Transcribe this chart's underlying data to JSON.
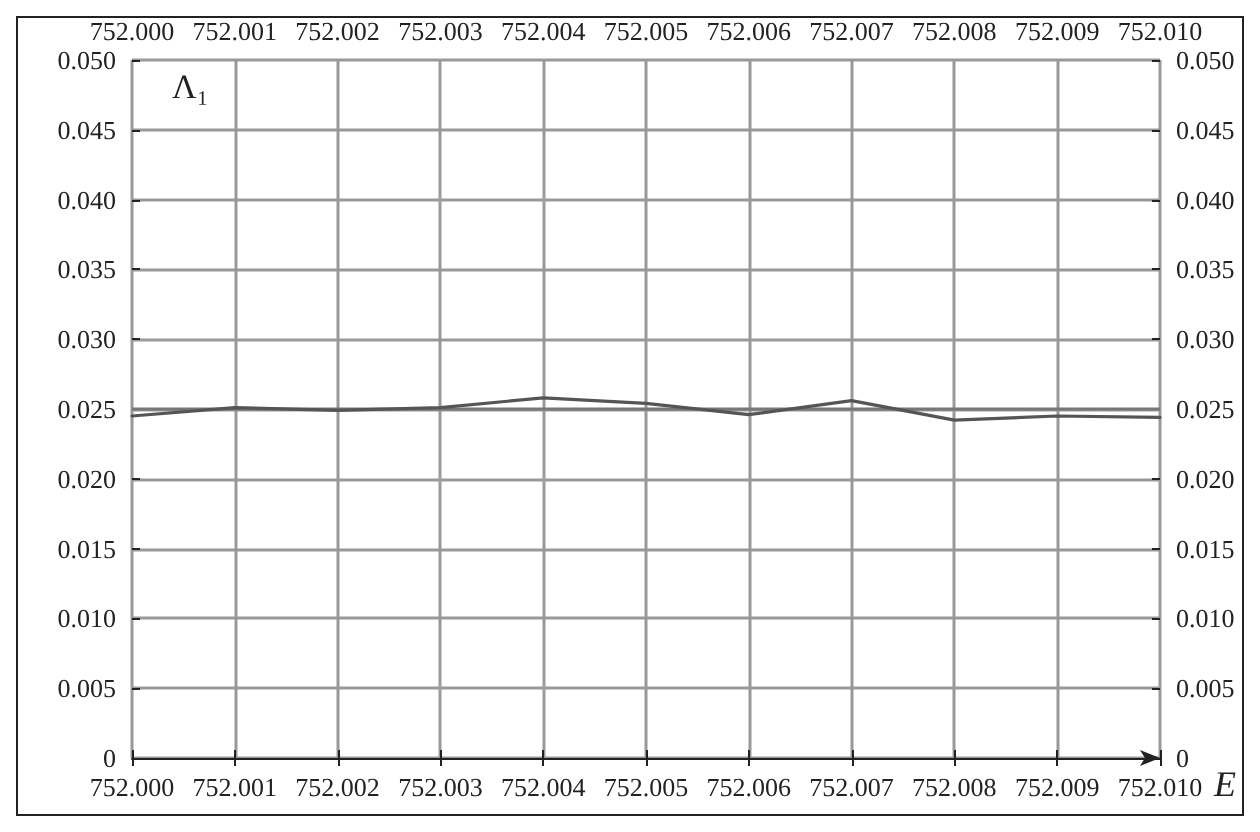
{
  "chart_data": {
    "type": "line",
    "xlabel": "E",
    "ylabel": "Λ₁",
    "x": [
      752.0,
      752.001,
      752.002,
      752.003,
      752.004,
      752.005,
      752.006,
      752.007,
      752.008,
      752.009,
      752.01
    ],
    "series": [
      {
        "color": "#555555",
        "values": [
          0.0245,
          0.0251,
          0.0249,
          0.0251,
          0.0258,
          0.0254,
          0.0246,
          0.0256,
          0.0242,
          0.0245,
          0.0244
        ]
      }
    ],
    "xlim": [
      752.0,
      752.01
    ],
    "xticks": [
      {
        "value": 752,
        "label": "752.000"
      },
      {
        "value": 752.001,
        "label": "752.001"
      },
      {
        "value": 752.002,
        "label": "752.002"
      },
      {
        "value": 752.003,
        "label": "752.003"
      },
      {
        "value": 752.004,
        "label": "752.004"
      },
      {
        "value": 752.005,
        "label": "752.005"
      },
      {
        "value": 752.006,
        "label": "752.006"
      },
      {
        "value": 752.007,
        "label": "752.007"
      },
      {
        "value": 752.008,
        "label": "752.008"
      },
      {
        "value": 752.009,
        "label": "752.009"
      },
      {
        "value": 752.01,
        "label": "752.010"
      }
    ],
    "x2lim": [
      752.0,
      752.01
    ],
    "x2ticks": [
      {
        "value": 752,
        "label": "752.000"
      },
      {
        "value": 752.001,
        "label": "752.001"
      },
      {
        "value": 752.002,
        "label": "752.002"
      },
      {
        "value": 752.003,
        "label": "752.003"
      },
      {
        "value": 752.004,
        "label": "752.004"
      },
      {
        "value": 752.005,
        "label": "752.005"
      },
      {
        "value": 752.006,
        "label": "752.006"
      },
      {
        "value": 752.007,
        "label": "752.007"
      },
      {
        "value": 752.008,
        "label": "752.008"
      },
      {
        "value": 752.009,
        "label": "752.009"
      },
      {
        "value": 752.01,
        "label": "752.010"
      }
    ],
    "ylim": [
      0,
      0.05
    ],
    "yticks": [
      0,
      {
        "value": 0.005,
        "label": "0.005"
      },
      {
        "value": 0.01,
        "label": "0.010"
      },
      {
        "value": 0.015,
        "label": "0.015"
      },
      {
        "value": 0.02,
        "label": "0.020"
      },
      {
        "value": 0.025,
        "label": "0.025"
      },
      {
        "value": 0.03,
        "label": "0.030"
      },
      {
        "value": 0.035,
        "label": "0.035"
      },
      {
        "value": 0.04,
        "label": "0.040"
      },
      {
        "value": 0.045,
        "label": "0.045"
      },
      {
        "value": 0.05,
        "label": "0.050"
      }
    ],
    "y2lim": [
      0,
      0.05
    ],
    "y2ticks": [
      0,
      {
        "value": 0.005,
        "label": "0.005"
      },
      {
        "value": 0.01,
        "label": "0.010"
      },
      {
        "value": 0.015,
        "label": "0.015"
      },
      {
        "value": 0.02,
        "label": "0.020"
      },
      {
        "value": 0.025,
        "label": "0.025"
      },
      {
        "value": 0.03,
        "label": "0.030"
      },
      {
        "value": 0.035,
        "label": "0.035"
      },
      {
        "value": 0.04,
        "label": "0.040"
      },
      {
        "value": 0.045,
        "label": "0.045"
      },
      {
        "value": 0.05,
        "label": "0.050"
      }
    ],
    "ref_lines": [
      {
        "axis": "y",
        "value": 0.025,
        "color": "#777777"
      }
    ],
    "grid": true,
    "marker": "none",
    "line_style": "solid"
  }
}
